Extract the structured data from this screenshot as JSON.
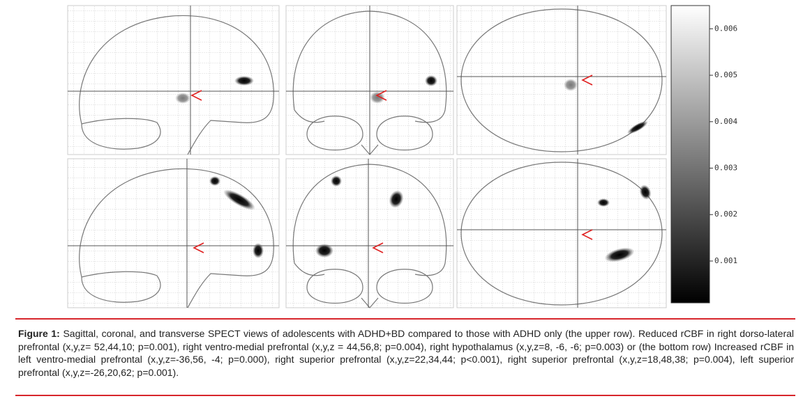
{
  "figure": {
    "colorbar": {
      "lim": [
        0.0001,
        0.0065
      ],
      "ticks": [
        0.006,
        0.005,
        0.004,
        0.003,
        0.002,
        0.001
      ]
    },
    "caption": {
      "label": "Figure 1:",
      "text": "Sagittal, coronal, and transverse SPECT views of adolescents with ADHD+BD compared to those with ADHD only (the upper row). Reduced rCBF in right dorso-lateral prefrontal (x,y,z= 52,44,10; p=0.001), right ventro-medial prefrontal (x,y,z = 44,56,8; p=0.004), right hypothalamus (x,y,z=8, -6, -6; p=0.003) or (the bottom row) Increased rCBF in left ventro-medial prefrontal (x,y,z=-36,56, -4; p=0.000), right superior prefrontal (x,y,z=22,34,44; p<0.001), right superior prefrontal (x,y,z=18,48,38; p=0.004), left superior prefrontal (x,y,z=-26,20,62; p=0.001)."
    }
  }
}
